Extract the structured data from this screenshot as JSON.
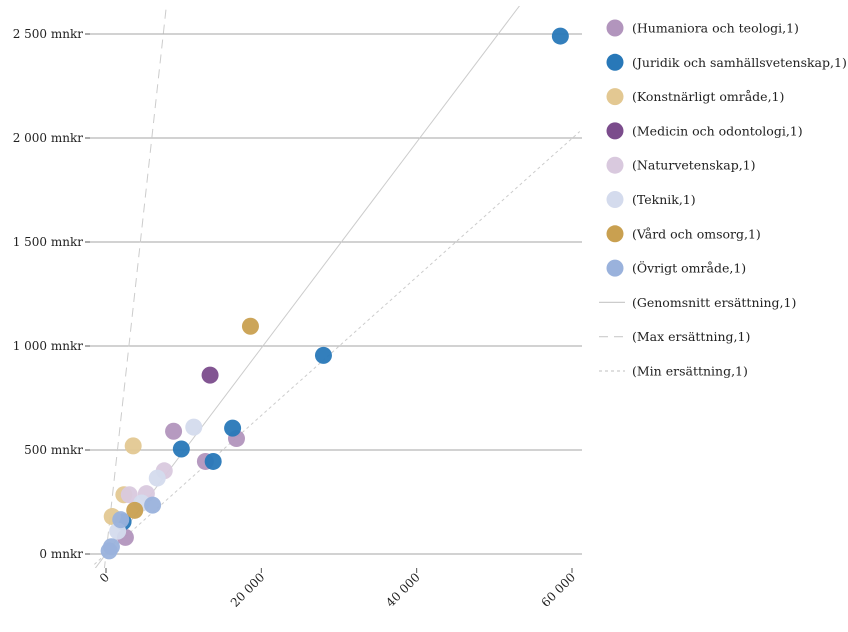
{
  "chart_data": {
    "type": "scatter",
    "grid": "horizontal",
    "legend_position": "right",
    "xlim": [
      -1500,
      61000
    ],
    "ylim": [
      -100,
      2620
    ],
    "x_ticks": [
      {
        "value": 0,
        "label": "0"
      },
      {
        "value": 20000,
        "label": "20 000"
      },
      {
        "value": 40000,
        "label": "40 000"
      },
      {
        "value": 60000,
        "label": "60 000"
      }
    ],
    "y_ticks": [
      {
        "value": 0,
        "label": "0 mnkr"
      },
      {
        "value": 500,
        "label": "500 mnkr"
      },
      {
        "value": 1000,
        "label": "1 000 mnkr"
      },
      {
        "value": 1500,
        "label": "1 500 mnkr"
      },
      {
        "value": 2000,
        "label": "2 000 mnkr"
      },
      {
        "value": 2500,
        "label": "2 500 mnkr"
      }
    ],
    "series": [
      {
        "name": "(Humaniora och teologi,1)",
        "color": "#b295bd",
        "points": [
          [
            2500,
            80
          ],
          [
            8700,
            590
          ],
          [
            12800,
            445
          ],
          [
            16800,
            555
          ]
        ]
      },
      {
        "name": "(Juridik och samhällsvetenskap,1)",
        "color": "#2878b8",
        "points": [
          [
            58500,
            2490
          ],
          [
            28000,
            955
          ],
          [
            16300,
            605
          ],
          [
            9700,
            505
          ],
          [
            13800,
            445
          ],
          [
            2200,
            155
          ]
        ]
      },
      {
        "name": "(Konstnärligt område,1)",
        "color": "#e3c892",
        "points": [
          [
            3500,
            520
          ],
          [
            2300,
            285
          ],
          [
            800,
            180
          ]
        ]
      },
      {
        "name": "(Medicin och odontologi,1)",
        "color": "#7b4c8c",
        "points": [
          [
            13400,
            860
          ]
        ]
      },
      {
        "name": "(Naturvetenskap,1)",
        "color": "#d9c9de",
        "points": [
          [
            7500,
            400
          ],
          [
            5200,
            290
          ],
          [
            3000,
            285
          ]
        ]
      },
      {
        "name": "(Teknik,1)",
        "color": "#d4dbed",
        "points": [
          [
            11300,
            610
          ],
          [
            6600,
            365
          ],
          [
            4600,
            245
          ],
          [
            1500,
            110
          ]
        ]
      },
      {
        "name": "(Vård och omsorg,1)",
        "color": "#c9a050",
        "points": [
          [
            18600,
            1095
          ],
          [
            3700,
            210
          ]
        ]
      },
      {
        "name": "(Övrigt område,1)",
        "color": "#9ab2dc",
        "points": [
          [
            6000,
            235
          ],
          [
            1900,
            165
          ],
          [
            700,
            35
          ],
          [
            400,
            15
          ]
        ]
      }
    ],
    "lines": [
      {
        "name": "(Genomsnitt ersättning,1)",
        "style": "solid",
        "color": "#cccccc",
        "slope": 0.0495
      },
      {
        "name": "(Max ersättning,1)",
        "style": "dashed",
        "color": "#cccccc",
        "slope": 0.339
      },
      {
        "name": "(Min ersättning,1)",
        "style": "dotted",
        "color": "#cccccc",
        "slope": 0.0333
      }
    ]
  }
}
